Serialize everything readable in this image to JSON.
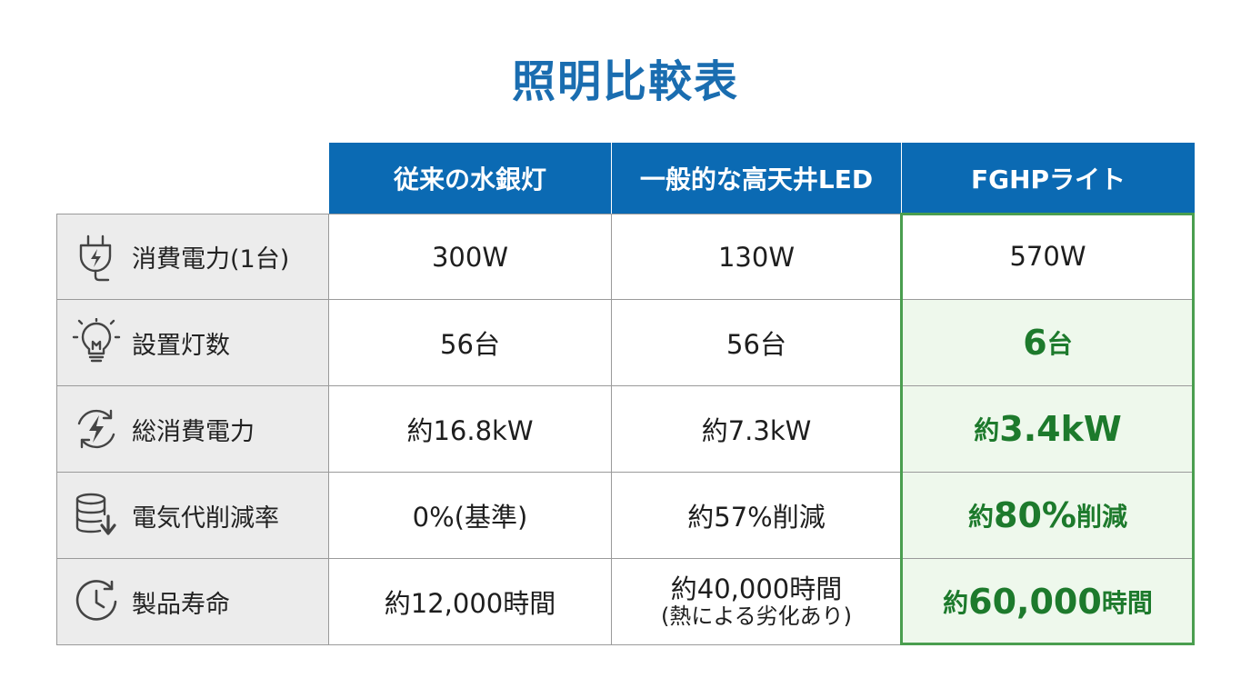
{
  "title": "照明比較表",
  "columns": [
    "従来の水銀灯",
    "一般的な高天井LED",
    "FGHPライト"
  ],
  "rows": [
    {
      "icon": "plug-lightning-icon",
      "label": "消費電力(1台)",
      "mercury": "300W",
      "led": "130W",
      "fghp": {
        "pre": "",
        "main": "570W",
        "post": ""
      }
    },
    {
      "icon": "light-bulb-icon",
      "label": "設置灯数",
      "mercury": "56台",
      "led": "56台",
      "fghp": {
        "pre": "",
        "main": "6",
        "post": "台"
      }
    },
    {
      "icon": "power-cycle-icon",
      "label": "総消費電力",
      "mercury": "約16.8kW",
      "led": "約7.3kW",
      "fghp": {
        "pre": "約",
        "main": "3.4kW",
        "post": ""
      }
    },
    {
      "icon": "database-down-icon",
      "label": "電気代削減率",
      "mercury": "0%(基準)",
      "led": "約57%削減",
      "fghp": {
        "pre": "約",
        "main": "80%",
        "post": "削減"
      }
    },
    {
      "icon": "clock-icon",
      "label": "製品寿命",
      "mercury": "約12,000時間",
      "led": "約40,000時間",
      "led_note": "(熱による劣化あり)",
      "fghp": {
        "pre": "約",
        "main": "60,000",
        "post": "時間"
      }
    }
  ],
  "colors": {
    "title": "#1a6db0",
    "header_bg": "#0b6ab3",
    "label_bg": "#ececec",
    "highlight_border": "#4a9e4f",
    "highlight_bg": "#eef8ec",
    "highlight_text": "#1d7a2c"
  }
}
